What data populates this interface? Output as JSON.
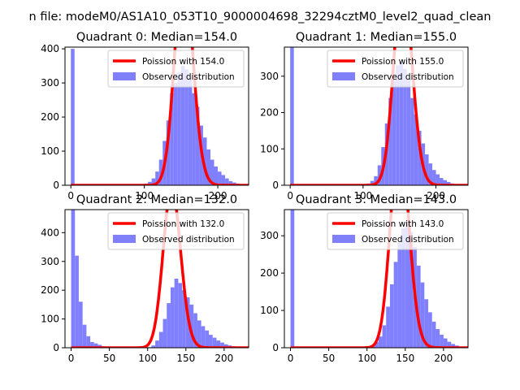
{
  "suptitle": "n file: modeM0/AS1A10_053T10_9000004698_32294cztM0_level2_quad_clean",
  "colors": {
    "hist": "#8080ff",
    "fit": "#ff0000",
    "axis": "#000000"
  },
  "chart_data": [
    {
      "type": "bar",
      "title": "Quadrant 0: Median=154.0",
      "xlim": [
        -8,
        242
      ],
      "ylim": [
        0,
        405
      ],
      "xticks": [
        0,
        100,
        200
      ],
      "yticks": [
        0,
        100,
        200,
        300,
        400
      ],
      "bin_width": 5,
      "x": [
        0,
        5,
        10,
        15,
        20,
        25,
        30,
        35,
        40,
        45,
        50,
        55,
        60,
        65,
        70,
        75,
        80,
        85,
        90,
        95,
        100,
        105,
        110,
        115,
        120,
        125,
        130,
        135,
        140,
        145,
        150,
        155,
        160,
        165,
        170,
        175,
        180,
        185,
        190,
        195,
        200,
        205,
        210,
        215,
        220,
        225,
        230
      ],
      "values": [
        400,
        0,
        0,
        0,
        0,
        0,
        0,
        0,
        0,
        0,
        0,
        0,
        0,
        0,
        0,
        0,
        0,
        0,
        0,
        0,
        5,
        10,
        20,
        40,
        75,
        130,
        190,
        270,
        300,
        330,
        350,
        340,
        310,
        270,
        230,
        175,
        140,
        105,
        75,
        55,
        40,
        30,
        20,
        12,
        8,
        5,
        2
      ],
      "fit": {
        "mean": 154.0
      },
      "legend": {
        "fit_label": "Poission with 154.0",
        "hist_label": "Observed distribution",
        "loc": "upper right"
      }
    },
    {
      "type": "bar",
      "title": "Quadrant 1: Median=155.0",
      "xlim": [
        -8,
        244
      ],
      "ylim": [
        0,
        380
      ],
      "xticks": [
        0,
        100,
        200
      ],
      "yticks": [
        0,
        100,
        200,
        300
      ],
      "bin_width": 5,
      "x": [
        0,
        5,
        10,
        15,
        20,
        25,
        30,
        35,
        40,
        45,
        50,
        55,
        60,
        65,
        70,
        75,
        80,
        85,
        90,
        95,
        100,
        105,
        110,
        115,
        120,
        125,
        130,
        135,
        140,
        145,
        150,
        155,
        160,
        165,
        170,
        175,
        180,
        185,
        190,
        195,
        200,
        205,
        210,
        215,
        220,
        225,
        230
      ],
      "values": [
        380,
        0,
        0,
        0,
        0,
        0,
        0,
        0,
        0,
        0,
        0,
        0,
        0,
        0,
        0,
        0,
        0,
        0,
        0,
        0,
        2,
        5,
        12,
        25,
        55,
        105,
        170,
        240,
        290,
        330,
        340,
        320,
        290,
        240,
        195,
        150,
        115,
        85,
        60,
        42,
        30,
        20,
        14,
        9,
        5,
        3,
        1
      ],
      "fit": {
        "mean": 155.0
      },
      "legend": {
        "fit_label": "Poission with 155.0",
        "hist_label": "Observed distribution",
        "loc": "upper right"
      }
    },
    {
      "type": "bar",
      "title": "Quadrant 2: Median=132.0",
      "xlim": [
        -8,
        232
      ],
      "ylim": [
        0,
        480
      ],
      "xticks": [
        0,
        50,
        100,
        150,
        200
      ],
      "yticks": [
        0,
        100,
        200,
        300,
        400
      ],
      "bin_width": 5,
      "x": [
        0,
        5,
        10,
        15,
        20,
        25,
        30,
        35,
        40,
        45,
        50,
        55,
        60,
        65,
        70,
        75,
        80,
        85,
        90,
        95,
        100,
        105,
        110,
        115,
        120,
        125,
        130,
        135,
        140,
        145,
        150,
        155,
        160,
        165,
        170,
        175,
        180,
        185,
        190,
        195,
        200,
        205,
        210,
        215,
        220
      ],
      "values": [
        480,
        320,
        160,
        80,
        40,
        20,
        15,
        10,
        5,
        3,
        2,
        1,
        0,
        0,
        0,
        0,
        0,
        0,
        0,
        0,
        2,
        8,
        25,
        55,
        100,
        155,
        210,
        240,
        225,
        200,
        175,
        150,
        120,
        95,
        75,
        60,
        45,
        35,
        25,
        18,
        12,
        8,
        5,
        3,
        2
      ],
      "fit": {
        "mean": 132.0
      },
      "legend": {
        "fit_label": "Poission with 132.0",
        "hist_label": "Observed distribution",
        "loc": "upper right"
      }
    },
    {
      "type": "bar",
      "title": "Quadrant 3: Median=143.0",
      "xlim": [
        -8,
        232
      ],
      "ylim": [
        0,
        370
      ],
      "xticks": [
        0,
        50,
        100,
        150,
        200
      ],
      "yticks": [
        0,
        100,
        200,
        300
      ],
      "bin_width": 5,
      "x": [
        0,
        5,
        10,
        15,
        20,
        25,
        30,
        35,
        40,
        45,
        50,
        55,
        60,
        65,
        70,
        75,
        80,
        85,
        90,
        95,
        100,
        105,
        110,
        115,
        120,
        125,
        130,
        135,
        140,
        145,
        150,
        155,
        160,
        165,
        170,
        175,
        180,
        185,
        190,
        195,
        200,
        205,
        210,
        215,
        220
      ],
      "values": [
        370,
        0,
        0,
        0,
        0,
        0,
        0,
        0,
        0,
        0,
        0,
        0,
        0,
        0,
        0,
        0,
        0,
        0,
        0,
        0,
        2,
        6,
        15,
        30,
        60,
        110,
        170,
        230,
        280,
        320,
        335,
        310,
        270,
        220,
        175,
        130,
        95,
        70,
        50,
        35,
        25,
        16,
        10,
        6,
        3
      ],
      "fit": {
        "mean": 143.0
      },
      "legend": {
        "fit_label": "Poission with 143.0",
        "hist_label": "Observed distribution",
        "loc": "upper right"
      }
    }
  ]
}
